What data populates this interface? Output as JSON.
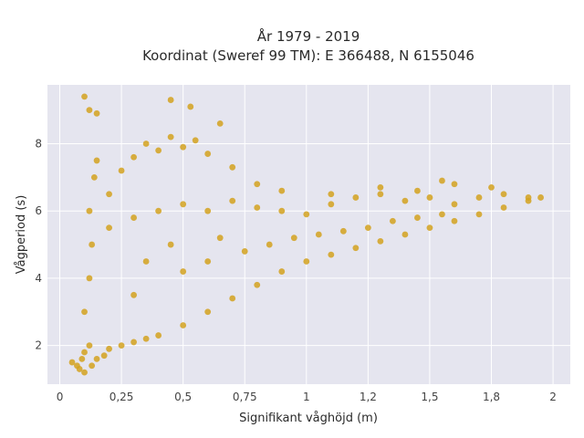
{
  "chart_data": {
    "type": "scatter",
    "title": "År 1979 - 2019",
    "subtitle": "Koordinat (Sweref 99 TM): E 366488, N 6155046",
    "xlabel": "Signifikant våghöjd (m)",
    "ylabel": "Vågperiod (s)",
    "xlim": [
      -0.05,
      2.07
    ],
    "ylim": [
      0.85,
      9.75
    ],
    "x_ticks": [
      0,
      0.25,
      0.5,
      0.75,
      1,
      1.25,
      1.5,
      1.75,
      2
    ],
    "x_tick_labels": [
      "0",
      "0,25",
      "0,5",
      "0,75",
      "1",
      "1,2",
      "1,5",
      "1,8",
      "2"
    ],
    "y_ticks": [
      2,
      4,
      6,
      8
    ],
    "y_tick_labels": [
      "2",
      "4",
      "6",
      "8"
    ],
    "grid": true,
    "background_color": "#e5e5ef",
    "marker_color": "#d4a21f",
    "series": [
      {
        "points": [
          [
            0.05,
            1.5
          ],
          [
            0.07,
            1.4
          ],
          [
            0.08,
            1.3
          ],
          [
            0.09,
            1.6
          ],
          [
            0.1,
            1.8
          ],
          [
            0.1,
            1.2
          ],
          [
            0.12,
            2.0
          ],
          [
            0.13,
            1.4
          ],
          [
            0.15,
            1.6
          ],
          [
            0.18,
            1.7
          ],
          [
            0.2,
            1.9
          ],
          [
            0.25,
            2.0
          ],
          [
            0.3,
            2.1
          ],
          [
            0.35,
            2.2
          ],
          [
            0.4,
            2.3
          ],
          [
            0.5,
            2.6
          ],
          [
            0.6,
            3.0
          ],
          [
            0.7,
            3.4
          ],
          [
            0.8,
            3.8
          ],
          [
            0.9,
            4.2
          ],
          [
            1.0,
            4.5
          ],
          [
            1.1,
            4.7
          ],
          [
            1.2,
            4.9
          ],
          [
            1.3,
            5.1
          ],
          [
            1.4,
            5.3
          ],
          [
            1.5,
            5.5
          ],
          [
            1.6,
            5.7
          ],
          [
            1.7,
            5.9
          ],
          [
            1.8,
            6.1
          ],
          [
            1.9,
            6.3
          ],
          [
            0.1,
            3.0
          ],
          [
            0.12,
            4.0
          ],
          [
            0.13,
            5.0
          ],
          [
            0.12,
            6.0
          ],
          [
            0.14,
            7.0
          ],
          [
            0.15,
            7.5
          ],
          [
            0.2,
            6.5
          ],
          [
            0.25,
            7.2
          ],
          [
            0.3,
            7.6
          ],
          [
            0.35,
            8.0
          ],
          [
            0.4,
            7.8
          ],
          [
            0.45,
            8.2
          ],
          [
            0.5,
            7.9
          ],
          [
            0.55,
            8.1
          ],
          [
            0.6,
            7.7
          ],
          [
            0.2,
            5.5
          ],
          [
            0.3,
            5.8
          ],
          [
            0.4,
            6.0
          ],
          [
            0.5,
            6.2
          ],
          [
            0.6,
            6.0
          ],
          [
            0.7,
            6.3
          ],
          [
            0.8,
            6.1
          ],
          [
            0.9,
            6.0
          ],
          [
            1.0,
            5.9
          ],
          [
            1.1,
            6.2
          ],
          [
            1.2,
            6.4
          ],
          [
            1.3,
            6.5
          ],
          [
            1.4,
            6.3
          ],
          [
            1.5,
            6.4
          ],
          [
            1.6,
            6.2
          ],
          [
            1.7,
            6.4
          ],
          [
            1.8,
            6.5
          ],
          [
            1.9,
            6.4
          ],
          [
            1.95,
            6.4
          ],
          [
            0.3,
            3.5
          ],
          [
            0.35,
            4.5
          ],
          [
            0.45,
            5.0
          ],
          [
            0.5,
            4.2
          ],
          [
            0.6,
            4.5
          ],
          [
            0.65,
            5.2
          ],
          [
            0.75,
            4.8
          ],
          [
            0.85,
            5.0
          ],
          [
            0.95,
            5.2
          ],
          [
            1.05,
            5.3
          ],
          [
            1.15,
            5.4
          ],
          [
            1.25,
            5.5
          ],
          [
            1.35,
            5.7
          ],
          [
            1.45,
            5.8
          ],
          [
            1.55,
            5.9
          ],
          [
            0.1,
            9.4
          ],
          [
            0.12,
            9.0
          ],
          [
            0.15,
            8.9
          ],
          [
            0.45,
            9.3
          ],
          [
            0.53,
            9.1
          ],
          [
            0.65,
            8.6
          ],
          [
            0.7,
            7.3
          ],
          [
            0.8,
            6.8
          ],
          [
            0.9,
            6.6
          ],
          [
            1.1,
            6.5
          ],
          [
            1.3,
            6.7
          ],
          [
            1.45,
            6.6
          ],
          [
            1.55,
            6.9
          ],
          [
            1.6,
            6.8
          ],
          [
            1.75,
            6.7
          ]
        ]
      }
    ]
  }
}
